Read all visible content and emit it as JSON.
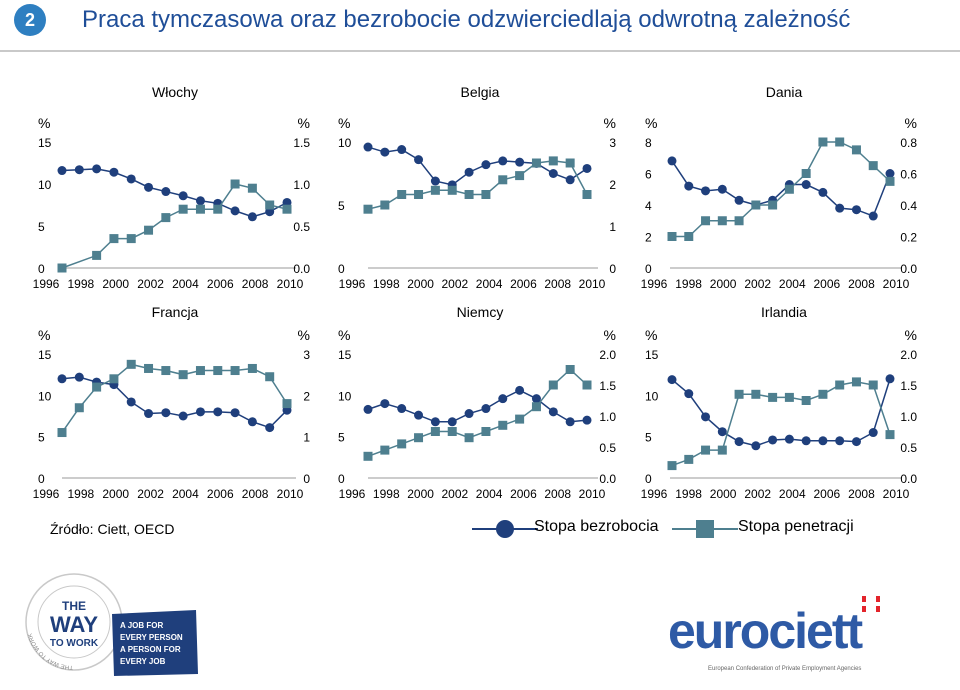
{
  "header": {
    "number": "2",
    "title": "Praca tymczasowa oraz bezrobocie odzwierciedlają odwrotną zależność"
  },
  "colors": {
    "unemployment": "#1f3f7c",
    "penetration": "#4e7f8f",
    "accent": "#2e7fc1",
    "title": "#1f4e98",
    "brand_red": "#e3242b",
    "brand_blue": "#2e5aa5"
  },
  "chart_data": [
    {
      "type": "line",
      "title": "Włochy",
      "x": [
        1996,
        1997,
        1998,
        1999,
        2000,
        2001,
        2002,
        2003,
        2004,
        2005,
        2006,
        2007,
        2008,
        2009
      ],
      "series": [
        {
          "name": "Stopa bezrobocia",
          "axis": "left",
          "values": [
            11.6,
            11.7,
            11.8,
            11.4,
            10.6,
            9.6,
            9.1,
            8.6,
            8.0,
            7.7,
            6.8,
            6.1,
            6.7,
            7.8
          ]
        },
        {
          "name": "Stopa penetracji",
          "axis": "right",
          "values": [
            0.0,
            null,
            0.15,
            0.35,
            0.35,
            0.45,
            0.6,
            0.7,
            0.7,
            0.7,
            1.0,
            0.95,
            0.75,
            0.7
          ]
        }
      ],
      "left_ticks": [
        "0",
        "5",
        "10",
        "15"
      ],
      "right_ticks": [
        "0.0",
        "0.5",
        "1.0",
        "1.5"
      ],
      "ylim_left": [
        0,
        15
      ],
      "ylim_right": [
        0,
        1.5
      ],
      "xtick_labels": [
        "1996",
        "1998",
        "2000",
        "2002",
        "2004",
        "2006",
        "2008",
        "2010"
      ],
      "left_unit": "%",
      "right_unit": "%"
    },
    {
      "type": "line",
      "title": "Belgia",
      "x": [
        1996,
        1997,
        1998,
        1999,
        2000,
        2001,
        2002,
        2003,
        2004,
        2005,
        2006,
        2007,
        2008,
        2009
      ],
      "series": [
        {
          "name": "Stopa bezrobocia",
          "axis": "left",
          "values": [
            9.6,
            9.2,
            9.4,
            8.6,
            6.9,
            6.6,
            7.6,
            8.2,
            8.5,
            8.4,
            8.3,
            7.5,
            7.0,
            7.9
          ]
        },
        {
          "name": "Stopa penetracji",
          "axis": "right",
          "values": [
            1.4,
            1.5,
            1.75,
            1.75,
            1.85,
            1.85,
            1.75,
            1.75,
            2.1,
            2.2,
            2.5,
            2.55,
            2.5,
            1.75
          ]
        }
      ],
      "left_ticks": [
        "0",
        "5",
        "10"
      ],
      "right_ticks": [
        "0",
        "1",
        "2",
        "3"
      ],
      "ylim_left": [
        0,
        10
      ],
      "ylim_right": [
        0,
        3
      ],
      "xtick_labels": [
        "1996",
        "1998",
        "2000",
        "2002",
        "2004",
        "2006",
        "2008",
        "2010"
      ],
      "left_unit": "%",
      "right_unit": "%"
    },
    {
      "type": "line",
      "title": "Dania",
      "x": [
        1996,
        1997,
        1998,
        1999,
        2000,
        2001,
        2002,
        2003,
        2004,
        2005,
        2006,
        2007,
        2008,
        2009
      ],
      "series": [
        {
          "name": "Stopa bezrobocia",
          "axis": "left",
          "values": [
            6.8,
            5.2,
            4.9,
            5.0,
            4.3,
            4.0,
            4.3,
            5.3,
            5.3,
            4.8,
            3.8,
            3.7,
            3.3,
            6.0
          ]
        },
        {
          "name": "Stopa penetracji",
          "axis": "right",
          "values": [
            0.2,
            0.2,
            0.3,
            0.3,
            0.3,
            0.4,
            0.4,
            0.5,
            0.6,
            0.8,
            0.8,
            0.75,
            0.65,
            0.55
          ]
        }
      ],
      "left_ticks": [
        "0",
        "2",
        "4",
        "6",
        "8"
      ],
      "right_ticks": [
        "0.0",
        "0.2",
        "0.4",
        "0.6",
        "0.8"
      ],
      "ylim_left": [
        0,
        8
      ],
      "ylim_right": [
        0,
        0.8
      ],
      "xtick_labels": [
        "1996",
        "1998",
        "2000",
        "2002",
        "2004",
        "2006",
        "2008",
        "2010"
      ],
      "left_unit": "%",
      "right_unit": "%"
    },
    {
      "type": "line",
      "title": "Francja",
      "x": [
        1996,
        1997,
        1998,
        1999,
        2000,
        2001,
        2002,
        2003,
        2004,
        2005,
        2006,
        2007,
        2008,
        2009
      ],
      "series": [
        {
          "name": "Stopa bezrobocia",
          "axis": "left",
          "values": [
            12.0,
            12.2,
            11.6,
            11.3,
            9.2,
            7.8,
            7.9,
            7.5,
            8.0,
            8.0,
            7.9,
            6.8,
            6.1,
            8.2
          ]
        },
        {
          "name": "Stopa penetracji",
          "axis": "right",
          "values": [
            1.1,
            1.7,
            2.2,
            2.4,
            2.75,
            2.65,
            2.6,
            2.5,
            2.6,
            2.6,
            2.6,
            2.65,
            2.45,
            1.8
          ]
        }
      ],
      "left_ticks": [
        "0",
        "5",
        "10",
        "15"
      ],
      "right_ticks": [
        "0",
        "1",
        "2",
        "3"
      ],
      "ylim_left": [
        0,
        15
      ],
      "ylim_right": [
        0,
        3
      ],
      "xtick_labels": [
        "1996",
        "1998",
        "2000",
        "2002",
        "2004",
        "2006",
        "2008",
        "2010"
      ],
      "left_unit": "%",
      "right_unit": "%"
    },
    {
      "type": "line",
      "title": "Niemcy",
      "x": [
        1996,
        1997,
        1998,
        1999,
        2000,
        2001,
        2002,
        2003,
        2004,
        2005,
        2006,
        2007,
        2008,
        2009
      ],
      "series": [
        {
          "name": "Stopa bezrobocia",
          "axis": "left",
          "values": [
            8.3,
            9.0,
            8.4,
            7.6,
            6.8,
            6.8,
            7.8,
            8.4,
            9.6,
            10.6,
            9.6,
            8.0,
            6.8,
            7.0
          ]
        },
        {
          "name": "Stopa penetracji",
          "axis": "right",
          "values": [
            0.35,
            0.45,
            0.55,
            0.65,
            0.75,
            0.75,
            0.65,
            0.75,
            0.85,
            0.95,
            1.15,
            1.5,
            1.75,
            1.5
          ]
        }
      ],
      "left_ticks": [
        "0",
        "5",
        "10",
        "15"
      ],
      "right_ticks": [
        "0.0",
        "0.5",
        "1.0",
        "1.5",
        "2.0"
      ],
      "ylim_left": [
        0,
        15
      ],
      "ylim_right": [
        0,
        2
      ],
      "xtick_labels": [
        "1996",
        "1998",
        "2000",
        "2002",
        "2004",
        "2006",
        "2008",
        "2010"
      ],
      "left_unit": "%",
      "right_unit": "%"
    },
    {
      "type": "line",
      "title": "Irlandia",
      "x": [
        1996,
        1997,
        1998,
        1999,
        2000,
        2001,
        2002,
        2003,
        2004,
        2005,
        2006,
        2007,
        2008,
        2009
      ],
      "series": [
        {
          "name": "Stopa bezrobocia",
          "axis": "left",
          "values": [
            11.9,
            10.2,
            7.4,
            5.6,
            4.4,
            3.9,
            4.6,
            4.7,
            4.5,
            4.5,
            4.5,
            4.4,
            5.5,
            12.0
          ]
        },
        {
          "name": "Stopa penetracji",
          "axis": "right",
          "values": [
            0.2,
            0.3,
            0.45,
            0.45,
            1.35,
            1.35,
            1.3,
            1.3,
            1.25,
            1.35,
            1.5,
            1.55,
            1.5,
            0.7
          ]
        }
      ],
      "left_ticks": [
        "0",
        "5",
        "10",
        "15"
      ],
      "right_ticks": [
        "0.0",
        "0.5",
        "1.0",
        "1.5",
        "2.0"
      ],
      "ylim_left": [
        0,
        15
      ],
      "ylim_right": [
        0,
        2
      ],
      "xtick_labels": [
        "1996",
        "1998",
        "2000",
        "2002",
        "2004",
        "2006",
        "2008",
        "2010"
      ],
      "left_unit": "%",
      "right_unit": "%"
    }
  ],
  "legend": {
    "unemployment": "Stopa bezrobocia",
    "penetration": "Stopa penetracji"
  },
  "source": "Źródło: Ciett, OECD",
  "badge": {
    "ring_text": "THE WAY TO WORK",
    "big_the": "THE",
    "big_way": "WAY",
    "big_to_work": "TO WORK",
    "tag1": "A JOB FOR",
    "tag2": "EVERY PERSON",
    "tag3": "A PERSON FOR",
    "tag4": "EVERY JOB"
  },
  "brand": {
    "name": "eurociett",
    "tagline": "European Confederation of Private Employment Agencies"
  }
}
